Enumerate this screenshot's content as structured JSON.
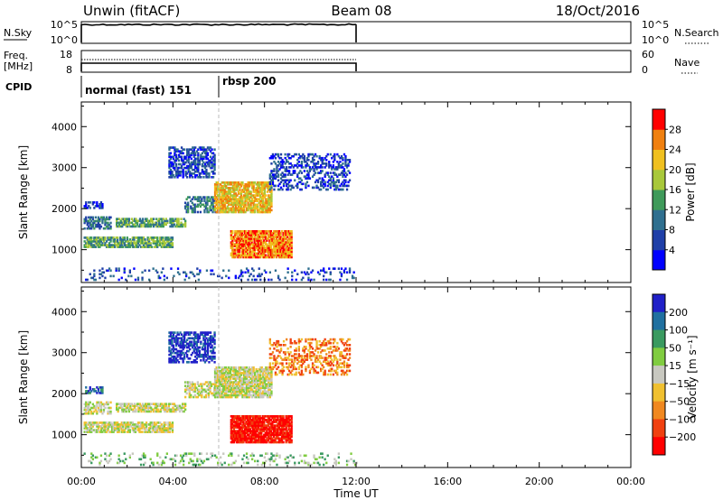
{
  "header": {
    "title": "Unwin (fitACF)",
    "beam": "Beam 08",
    "date": "18/Oct/2016"
  },
  "noise_panel": {
    "left_label": "N.Sky",
    "right_label": "N.Search",
    "left_ticks": [
      "10^5",
      "10^0"
    ],
    "right_ticks": [
      "10^5",
      "10^0"
    ]
  },
  "freq_panel": {
    "left_label_line1": "Freq.",
    "left_label_line2": "[MHz]",
    "right_label": "Nave",
    "left_ticks": [
      "18",
      "8"
    ],
    "right_ticks": [
      "60",
      "0"
    ]
  },
  "cpid_panel": {
    "label": "CPID",
    "modes": [
      {
        "name": "normal (fast) 151",
        "start_hour": 0
      },
      {
        "name": "rbsp 200",
        "start_hour": 6
      }
    ]
  },
  "chart_data": [
    {
      "type": "heatmap",
      "name": "power",
      "ylabel": "Slant Range [km]",
      "yticks": [
        "1000",
        "2000",
        "3000",
        "4000"
      ],
      "ylim": [
        200,
        4600
      ],
      "xlim": [
        0,
        24
      ],
      "colorbar": {
        "label": "Power [dB]",
        "ticks": [
          "4",
          "8",
          "12",
          "16",
          "20",
          "24",
          "28"
        ],
        "colors": [
          "#0000ff",
          "#1f3fa8",
          "#2f6f8f",
          "#3f9a5a",
          "#a8c83a",
          "#f0c020",
          "#f08010",
          "#ff0000"
        ]
      }
    },
    {
      "type": "heatmap",
      "name": "velocity",
      "ylabel": "Slant Range [km]",
      "yticks": [
        "1000",
        "2000",
        "3000",
        "4000"
      ],
      "ylim": [
        200,
        4600
      ],
      "xlim": [
        0,
        24
      ],
      "colorbar": {
        "label": "Velocity [m s⁻¹]",
        "ticks": [
          "200",
          "100",
          "50",
          "15",
          "−15",
          "−50",
          "−100",
          "−200"
        ],
        "colors": [
          "#2020c8",
          "#2070a0",
          "#3a9a60",
          "#80cc40",
          "#c8c8c0",
          "#f0c030",
          "#f08820",
          "#f04010",
          "#ff0000"
        ]
      },
      "xlabel": "Time UT",
      "xticks": [
        "00:00",
        "04:00",
        "08:00",
        "12:00",
        "16:00",
        "20:00",
        "00:00"
      ]
    }
  ]
}
